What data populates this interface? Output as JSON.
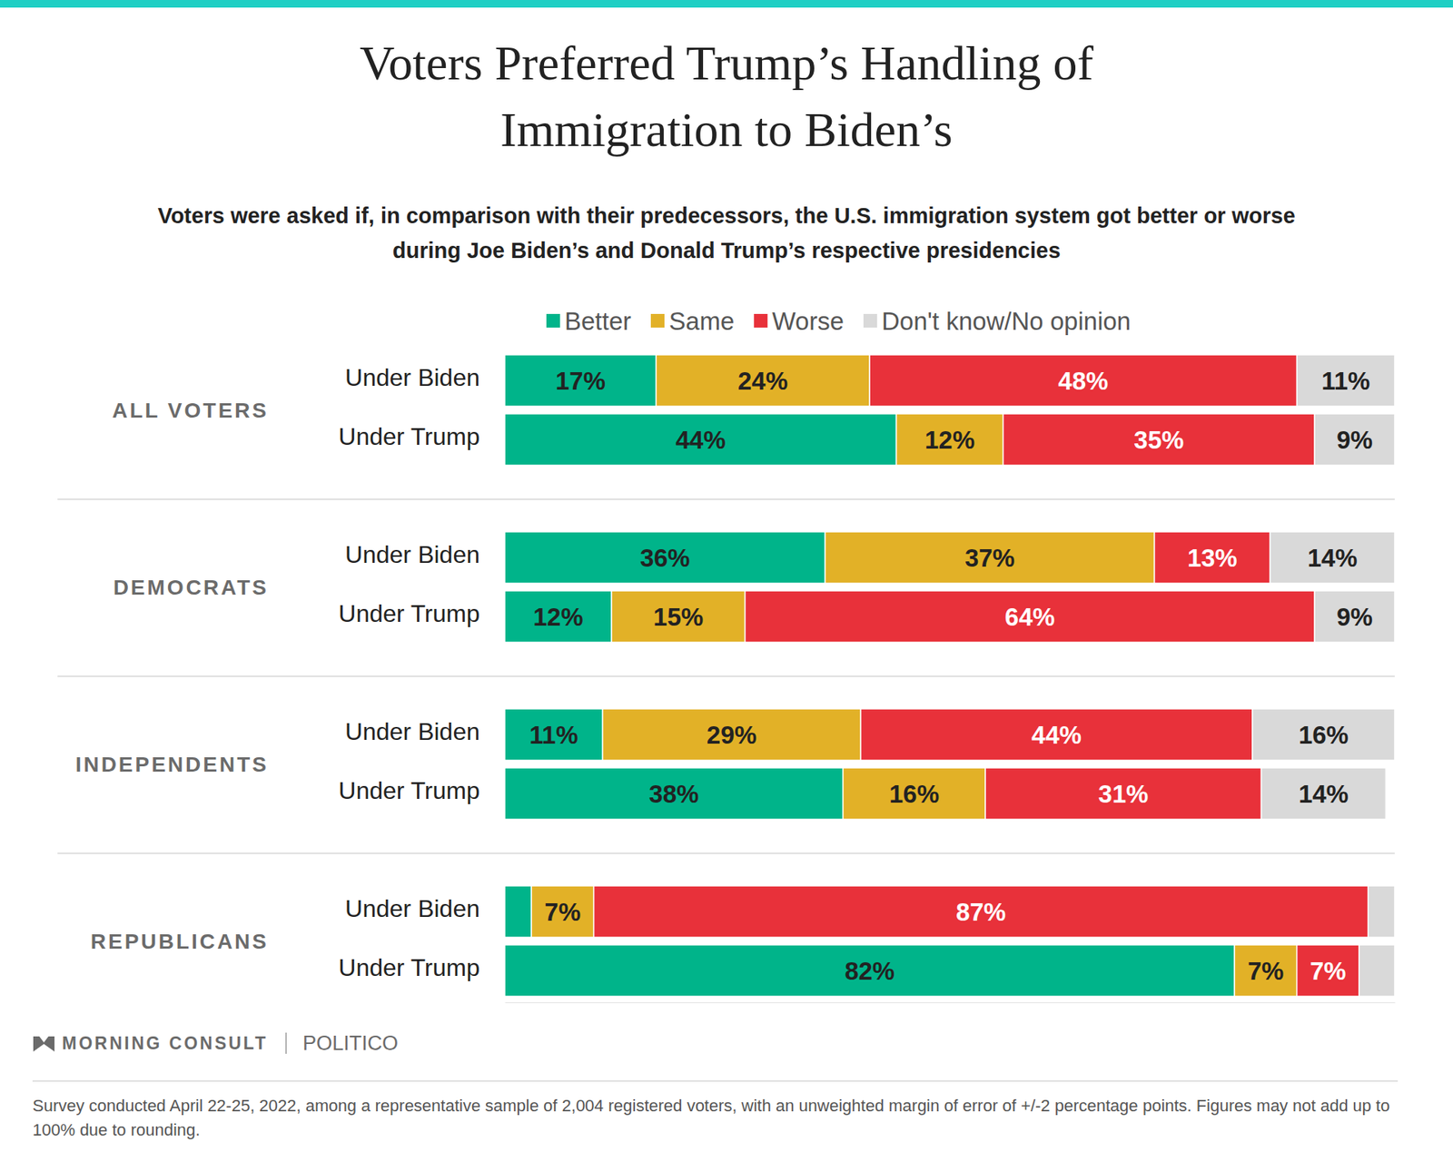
{
  "chart_data": {
    "type": "bar",
    "orientation": "horizontal",
    "stacked": true,
    "data_labels": true,
    "tick_labels": false,
    "title": "Voters Preferred Trump’s Handling of Immigration to Biden’s",
    "subtitle": "Voters were asked if, in comparison with their predecessors, the U.S. immigration system got better or worse during Joe Biden’s and Donald Trump’s respective presidencies",
    "groups": [
      "ALL VOTERS",
      "DEMOCRATS",
      "INDEPENDENTS",
      "REPUBLICANS"
    ],
    "categories": [
      "Under Biden",
      "Under Trump",
      "Under Biden",
      "Under Trump",
      "Under Biden",
      "Under Trump",
      "Under Biden",
      "Under Trump"
    ],
    "xlim": [
      0,
      100
    ],
    "legend": "top",
    "series": [
      {
        "name": "Better",
        "color": "#00b48a",
        "values": [
          17,
          44,
          36,
          12,
          11,
          38,
          3,
          82
        ],
        "value_labels": [
          "17%",
          "44%",
          "36%",
          "12%",
          "11%",
          "38%",
          null,
          "82%"
        ]
      },
      {
        "name": "Same",
        "color": "#e2b127",
        "values": [
          24,
          12,
          37,
          15,
          29,
          16,
          7,
          7
        ],
        "value_labels": [
          "24%",
          "12%",
          "37%",
          "15%",
          "29%",
          "16%",
          "7%",
          "7%"
        ]
      },
      {
        "name": "Worse",
        "color": "#e8313a",
        "values": [
          48,
          35,
          13,
          64,
          44,
          31,
          87,
          7
        ],
        "value_labels": [
          "48%",
          "35%",
          "13%",
          "64%",
          "44%",
          "31%",
          "87%",
          "7%"
        ]
      },
      {
        "name": "Don't know/No opinion",
        "color": "#d9d9d9",
        "values": [
          11,
          9,
          14,
          9,
          16,
          14,
          3,
          4
        ],
        "value_labels": [
          "11%",
          "9%",
          "14%",
          "9%",
          "16%",
          "14%",
          null,
          null
        ]
      }
    ],
    "source": "MORNING CONSULT",
    "publisher": "POLITICO",
    "note": "Survey conducted April 22-25, 2022, among a representative sample of 2,004 registered voters, with an unweighted margin of error of +/-2 percentage points. Figures may not add up to 100% due to rounding."
  }
}
